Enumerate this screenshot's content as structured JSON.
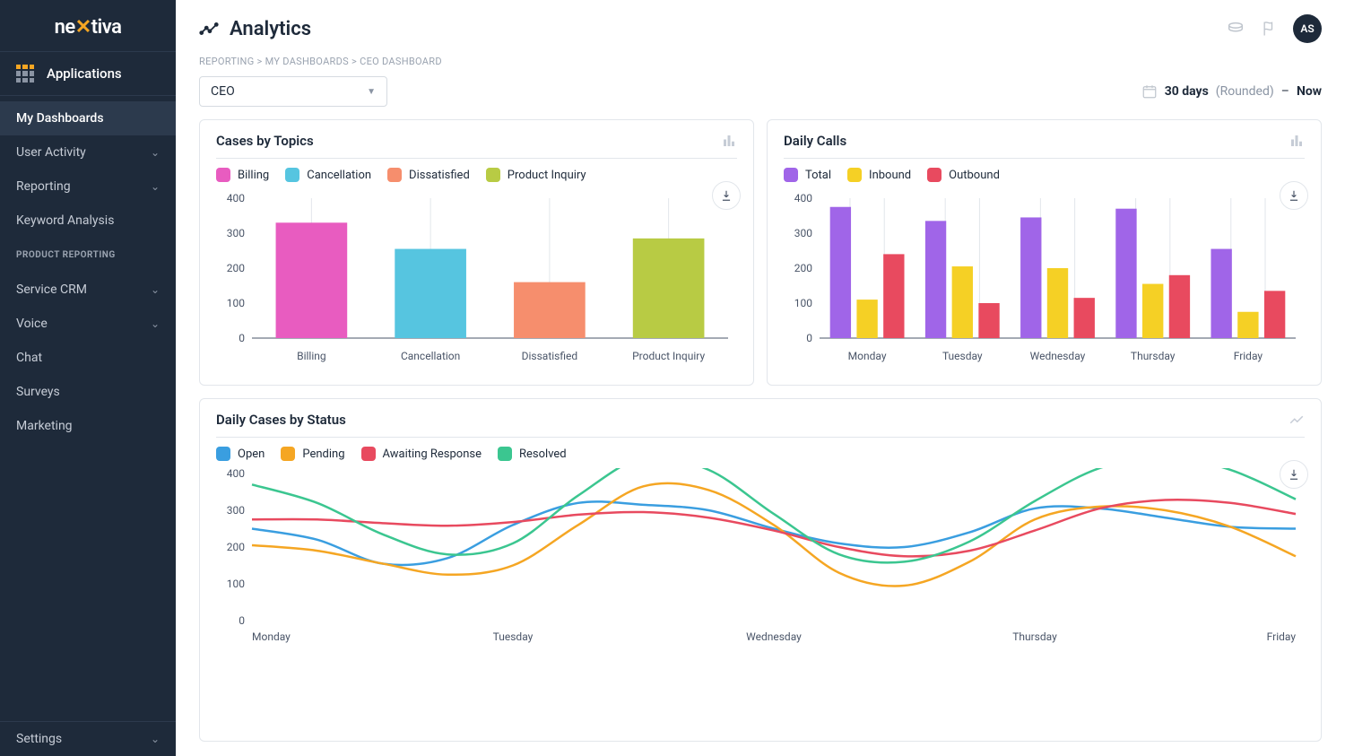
{
  "brand": {
    "name_pre": "ne",
    "name_post": "tiva"
  },
  "sidebar": {
    "apps_label": "Applications",
    "items_top": [
      {
        "label": "My Dashboards",
        "active": true,
        "expandable": false
      },
      {
        "label": "User Activity",
        "active": false,
        "expandable": true
      },
      {
        "label": "Reporting",
        "active": false,
        "expandable": true
      },
      {
        "label": "Keyword Analysis",
        "active": false,
        "expandable": false
      }
    ],
    "section_heading": "PRODUCT REPORTING",
    "items_bottom": [
      {
        "label": "Service CRM",
        "expandable": true
      },
      {
        "label": "Voice",
        "expandable": true
      },
      {
        "label": "Chat",
        "expandable": false
      },
      {
        "label": "Surveys",
        "expandable": false
      },
      {
        "label": "Marketing",
        "expandable": false
      }
    ],
    "settings_label": "Settings"
  },
  "header": {
    "title": "Analytics",
    "avatar": "AS"
  },
  "breadcrumbs": [
    "REPORTING",
    "MY DASHBOARDS",
    "CEO DASHBOARD"
  ],
  "toolbar": {
    "dropdown_value": "CEO",
    "range_label": "30 days",
    "rounded_label": "(Rounded)",
    "dash": "–",
    "now_label": "Now"
  },
  "card1": {
    "title": "Cases by Topics",
    "type": "bar",
    "categories": [
      "Billing",
      "Cancellation",
      "Dissatisfied",
      "Product Inquiry"
    ],
    "values": [
      330,
      255,
      160,
      285
    ],
    "colors": [
      "#e85cc0",
      "#56c5e0",
      "#f68e6d",
      "#b8cb44"
    ],
    "ylim": [
      0,
      400
    ],
    "ystep": 100,
    "axis_color": "#4a5568",
    "text_color": "#4a5568",
    "grid_color": "#e2e6eb",
    "bar_width": 0.6,
    "fontsize": 12
  },
  "card2": {
    "title": "Daily Calls",
    "type": "grouped-bar",
    "categories": [
      "Monday",
      "Tuesday",
      "Wednesday",
      "Thursday",
      "Friday"
    ],
    "series": [
      {
        "name": "Total",
        "color": "#a065e8",
        "values": [
          375,
          335,
          345,
          370,
          255
        ]
      },
      {
        "name": "Inbound",
        "color": "#f5d025",
        "values": [
          110,
          205,
          200,
          155,
          75
        ]
      },
      {
        "name": "Outbound",
        "color": "#e84a5f",
        "values": [
          240,
          100,
          115,
          180,
          135
        ]
      }
    ],
    "ylim": [
      0,
      400
    ],
    "ystep": 100,
    "axis_color": "#4a5568",
    "text_color": "#4a5568",
    "grid_color": "#e2e6eb",
    "bar_width": 0.22,
    "group_gap": 0.06,
    "fontsize": 12
  },
  "card3": {
    "title": "Daily Cases by Status",
    "type": "line",
    "categories": [
      "Monday",
      "Tuesday",
      "Wednesday",
      "Thursday",
      "Friday"
    ],
    "series": [
      {
        "name": "Open",
        "color": "#3a9ee0",
        "values": [
          250,
          220,
          155,
          170,
          260,
          320,
          315,
          300,
          250,
          210,
          200,
          240,
          305,
          305,
          280,
          255,
          250
        ]
      },
      {
        "name": "Pending",
        "color": "#f5a623",
        "values": [
          205,
          190,
          155,
          125,
          150,
          260,
          365,
          355,
          260,
          130,
          95,
          160,
          275,
          310,
          300,
          255,
          175
        ]
      },
      {
        "name": "Awaiting Response",
        "color": "#e84a5f",
        "values": [
          275,
          275,
          265,
          258,
          268,
          288,
          295,
          280,
          245,
          200,
          175,
          190,
          245,
          305,
          328,
          320,
          290
        ]
      },
      {
        "name": "Resolved",
        "color": "#3bc690",
        "values": [
          370,
          320,
          235,
          180,
          210,
          340,
          443,
          410,
          290,
          180,
          160,
          215,
          325,
          415,
          445,
          410,
          330
        ]
      }
    ],
    "ylim": [
      0,
      400
    ],
    "ystep": 100,
    "axis_color": "#4a5568",
    "text_color": "#4a5568",
    "line_width": 2.5,
    "fontsize": 12
  }
}
